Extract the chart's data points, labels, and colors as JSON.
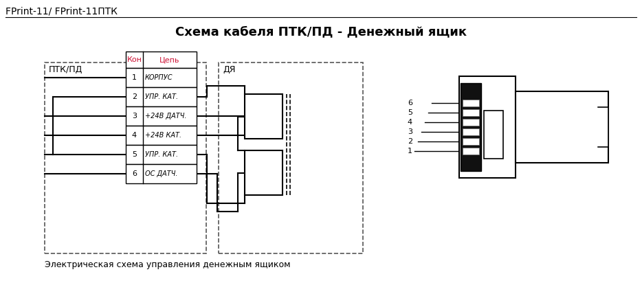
{
  "title": "Схема кабеля ПТК/ПД - Денежный ящик",
  "header": "FPrint-11/ FPrint-11ПТК",
  "footer": "Электрическая схема управления денежным ящиком",
  "label_ptk": "ПТК/ПД",
  "label_dya": "ДЯ",
  "col_kon": "Кон",
  "col_tsep": "Цепь",
  "rows": [
    {
      "num": "1",
      "name": "КОРПУС"
    },
    {
      "num": "2",
      "name": "УПР. КАТ."
    },
    {
      "num": "3",
      "name": "+24В ДАТЧ."
    },
    {
      "num": "4",
      "name": "+24В КАТ."
    },
    {
      "num": "5",
      "name": "УПР. КАТ."
    },
    {
      "num": "6",
      "name": "ОС ДАТЧ."
    }
  ],
  "bg_color": "#ffffff",
  "line_color": "#000000",
  "header_text_color": "#cc1133",
  "dashed_border_color": "#555555",
  "font_size_title": 13,
  "font_size_header": 10,
  "font_size_table": 8,
  "font_size_footer": 9
}
